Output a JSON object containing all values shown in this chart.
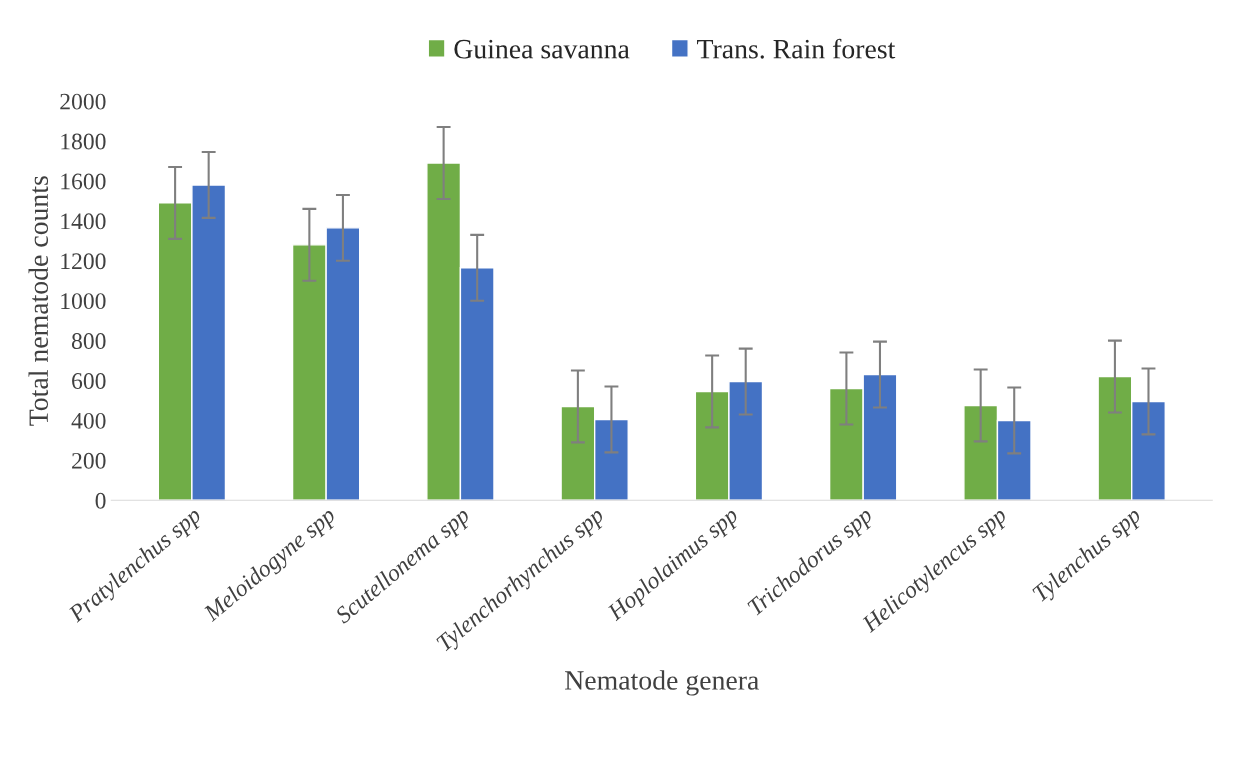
{
  "chart_data": {
    "type": "bar",
    "xlabel": "Nematode genera",
    "ylabel": "Total nematode counts",
    "categories": [
      "Pratylenchus spp",
      "Meloidogyne spp",
      "Scutellonema spp",
      "Tylenchorhynchus spp",
      "Hoplolaimus spp",
      "Trichodorus spp",
      "Helicotylencus spp",
      "Tylenchus spp"
    ],
    "series": [
      {
        "name": "Guinea savanna",
        "color": "#70ad47",
        "values": [
          1490,
          1280,
          1690,
          470,
          545,
          560,
          475,
          620
        ],
        "errors": [
          180,
          180,
          180,
          180,
          180,
          180,
          180,
          180
        ]
      },
      {
        "name": "Trans. Rain forest",
        "color": "#4472c4",
        "values": [
          1580,
          1365,
          1165,
          405,
          595,
          630,
          400,
          495
        ],
        "errors": [
          165,
          165,
          165,
          165,
          165,
          165,
          165,
          165
        ]
      }
    ],
    "ylim": [
      0,
      2000
    ],
    "yticks": [
      0,
      200,
      400,
      600,
      800,
      1000,
      1200,
      1400,
      1600,
      1800,
      2000
    ],
    "grid": false,
    "legend": "top"
  }
}
